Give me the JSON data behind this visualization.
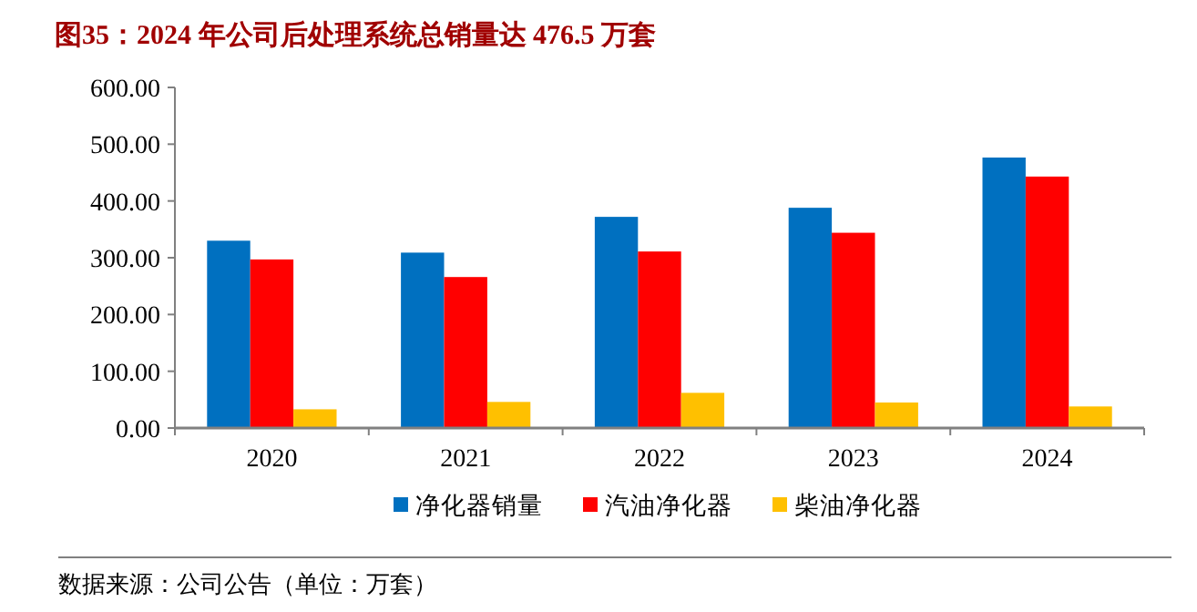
{
  "chart_data": {
    "type": "bar",
    "title": "图35：2024 年公司后处理系统总销量达 476.5 万套",
    "categories": [
      "2020",
      "2021",
      "2022",
      "2023",
      "2024"
    ],
    "series": [
      {
        "name": "净化器销量",
        "color": "#0070c0",
        "values": [
          330,
          309,
          372,
          388,
          476.5
        ]
      },
      {
        "name": "汽油净化器",
        "color": "#ff0000",
        "values": [
          297,
          266,
          311,
          344,
          443
        ]
      },
      {
        "name": "柴油净化器",
        "color": "#ffc000",
        "values": [
          33,
          46,
          62,
          45,
          38
        ]
      }
    ],
    "ylim": [
      0,
      600
    ],
    "yticks": [
      {
        "value": 0,
        "label": "0.00"
      },
      {
        "value": 100,
        "label": "100.00"
      },
      {
        "value": 200,
        "label": "200.00"
      },
      {
        "value": 300,
        "label": "300.00"
      },
      {
        "value": 400,
        "label": "400.00"
      },
      {
        "value": 500,
        "label": "500.00"
      },
      {
        "value": 600,
        "label": "600.00"
      }
    ],
    "grid": false,
    "legend": "bottom",
    "annotations": [
      "数据来源：公司公告（单位：万套）"
    ]
  }
}
